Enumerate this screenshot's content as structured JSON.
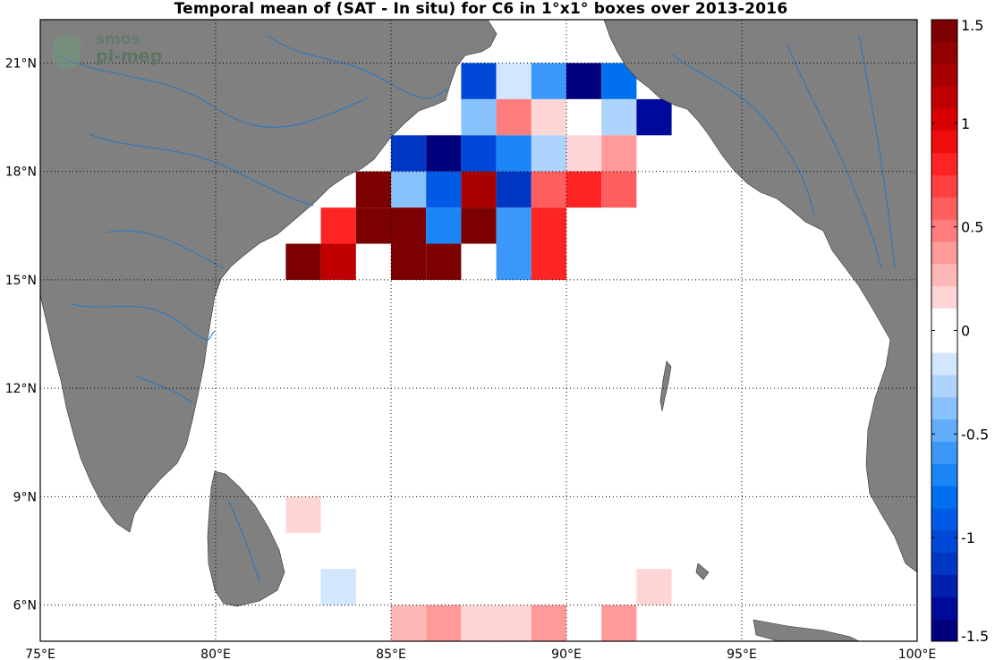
{
  "title": "Temporal mean of (SAT - In situ) for C6 in 1°x1° boxes over 2013-2016",
  "logo": {
    "line1": "smos",
    "line2": "pi-mep"
  },
  "map": {
    "lon_range": [
      75,
      100
    ],
    "lat_range": [
      5,
      22.2
    ],
    "land_color": "#808080",
    "river_color": "#1e78c8",
    "grid": "dotted",
    "lon_ticks": [
      {
        "value": 75,
        "label": "75°E"
      },
      {
        "value": 80,
        "label": "80°E"
      },
      {
        "value": 85,
        "label": "85°E"
      },
      {
        "value": 90,
        "label": "90°E"
      },
      {
        "value": 95,
        "label": "95°E"
      },
      {
        "value": 100,
        "label": "100°E"
      }
    ],
    "lat_ticks": [
      {
        "value": 6,
        "label": "6°N"
      },
      {
        "value": 9,
        "label": "9°N"
      },
      {
        "value": 12,
        "label": "12°N"
      },
      {
        "value": 15,
        "label": "15°N"
      },
      {
        "value": 18,
        "label": "18°N"
      },
      {
        "value": 21,
        "label": "21°N"
      }
    ]
  },
  "colorbar": {
    "min": -1.5,
    "max": 1.5,
    "ticks": [
      {
        "value": 1.5,
        "label": "1.5"
      },
      {
        "value": 1,
        "label": "1"
      },
      {
        "value": 0.5,
        "label": "0.5"
      },
      {
        "value": 0,
        "label": "0"
      },
      {
        "value": -0.5,
        "label": "-0.5"
      },
      {
        "value": -1,
        "label": "-1"
      },
      {
        "value": -1.5,
        "label": "-1.5"
      }
    ],
    "colors": [
      "#00007d",
      "#000a9a",
      "#0020b0",
      "#0036c4",
      "#0048d8",
      "#005ae6",
      "#0070f0",
      "#1a86f6",
      "#3c98f8",
      "#62acfa",
      "#88c2fc",
      "#aed4fd",
      "#d2e6fe",
      "#ffffff",
      "#ffffff",
      "#ffd6d6",
      "#ffb8b8",
      "#ff9a9a",
      "#ff7c7c",
      "#ff5e5e",
      "#ff4040",
      "#ff2424",
      "#f00c0c",
      "#d80000",
      "#c00000",
      "#a80000",
      "#940000",
      "#7d0000"
    ]
  },
  "chart_data": {
    "type": "heatmap",
    "title": "Temporal mean of (SAT - In situ) for C6 in 1°x1° boxes over 2013-2016",
    "xlabel": "",
    "ylabel": "",
    "x_unit": "°E",
    "y_unit": "°N",
    "value_range": [
      -1.5,
      1.5
    ],
    "cells": [
      {
        "lon": 87,
        "lat": 20,
        "value": -1.0
      },
      {
        "lon": 88,
        "lat": 20,
        "value": -0.2
      },
      {
        "lon": 89,
        "lat": 20,
        "value": -0.6
      },
      {
        "lon": 90,
        "lat": 20,
        "value": -1.5
      },
      {
        "lon": 91,
        "lat": 20,
        "value": -0.8
      },
      {
        "lon": 87,
        "lat": 19,
        "value": -0.4
      },
      {
        "lon": 88,
        "lat": 19,
        "value": 0.45
      },
      {
        "lon": 89,
        "lat": 19,
        "value": 0.15
      },
      {
        "lon": 90,
        "lat": 19,
        "value": 0.0
      },
      {
        "lon": 91,
        "lat": 19,
        "value": -0.25
      },
      {
        "lon": 92,
        "lat": 19,
        "value": -1.3
      },
      {
        "lon": 85,
        "lat": 18,
        "value": -1.1
      },
      {
        "lon": 86,
        "lat": 18,
        "value": -1.5
      },
      {
        "lon": 87,
        "lat": 18,
        "value": -1.0
      },
      {
        "lon": 88,
        "lat": 18,
        "value": -0.65
      },
      {
        "lon": 89,
        "lat": 18,
        "value": -0.3
      },
      {
        "lon": 90,
        "lat": 18,
        "value": 0.15
      },
      {
        "lon": 91,
        "lat": 18,
        "value": 0.35
      },
      {
        "lon": 84,
        "lat": 17,
        "value": 1.5
      },
      {
        "lon": 85,
        "lat": 17,
        "value": -0.35
      },
      {
        "lon": 86,
        "lat": 17,
        "value": -0.95
      },
      {
        "lon": 87,
        "lat": 17,
        "value": 1.2
      },
      {
        "lon": 88,
        "lat": 17,
        "value": -1.1
      },
      {
        "lon": 89,
        "lat": 17,
        "value": 0.55
      },
      {
        "lon": 90,
        "lat": 17,
        "value": 0.85
      },
      {
        "lon": 91,
        "lat": 17,
        "value": 0.55
      },
      {
        "lon": 83,
        "lat": 16,
        "value": 0.85
      },
      {
        "lon": 84,
        "lat": 16,
        "value": 1.5
      },
      {
        "lon": 85,
        "lat": 16,
        "value": 1.5
      },
      {
        "lon": 86,
        "lat": 16,
        "value": -0.75
      },
      {
        "lon": 87,
        "lat": 16,
        "value": 1.5
      },
      {
        "lon": 88,
        "lat": 16,
        "value": -0.6
      },
      {
        "lon": 89,
        "lat": 16,
        "value": 0.8
      },
      {
        "lon": 82,
        "lat": 15,
        "value": 1.5
      },
      {
        "lon": 83,
        "lat": 15,
        "value": 1.1
      },
      {
        "lon": 85,
        "lat": 15,
        "value": 1.5
      },
      {
        "lon": 86,
        "lat": 15,
        "value": 1.5
      },
      {
        "lon": 88,
        "lat": 15,
        "value": -0.6
      },
      {
        "lon": 89,
        "lat": 15,
        "value": 0.8
      },
      {
        "lon": 82,
        "lat": 8,
        "value": 0.15
      },
      {
        "lon": 83,
        "lat": 6,
        "value": -0.15
      },
      {
        "lon": 92,
        "lat": 6,
        "value": 0.15
      },
      {
        "lon": 85,
        "lat": 5,
        "value": 0.3
      },
      {
        "lon": 86,
        "lat": 5,
        "value": 0.4
      },
      {
        "lon": 87,
        "lat": 5,
        "value": 0.15
      },
      {
        "lon": 88,
        "lat": 5,
        "value": 0.15
      },
      {
        "lon": 89,
        "lat": 5,
        "value": 0.4
      },
      {
        "lon": 91,
        "lat": 5,
        "value": 0.4
      }
    ]
  }
}
